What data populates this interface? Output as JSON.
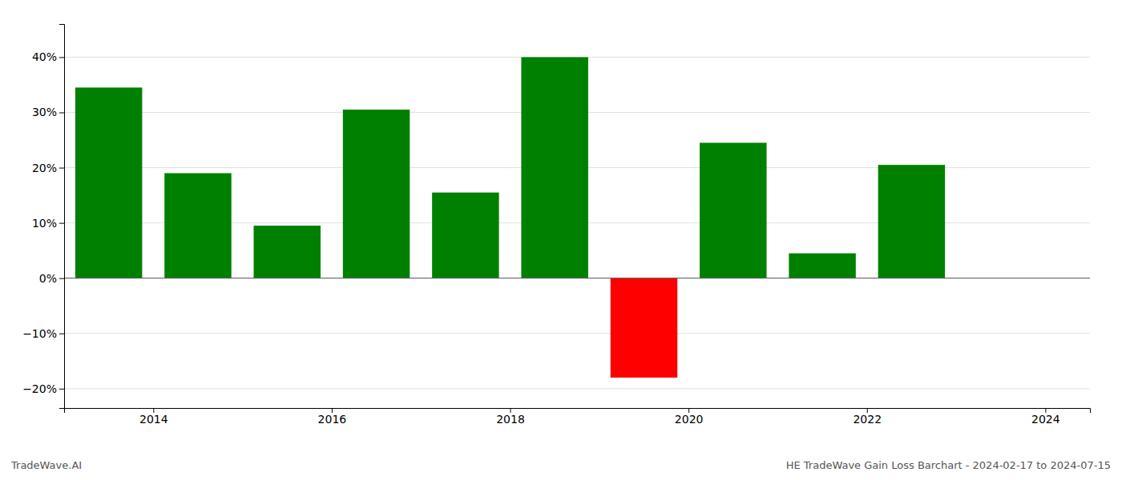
{
  "chart_data": {
    "type": "bar",
    "x": [
      2013.5,
      2014.5,
      2015.5,
      2016.5,
      2017.5,
      2018.5,
      2019.5,
      2020.5,
      2021.5,
      2022.5
    ],
    "values": [
      0.345,
      0.19,
      0.095,
      0.305,
      0.155,
      0.4,
      -0.18,
      0.245,
      0.045,
      0.205
    ],
    "colors": [
      "#008000",
      "#008000",
      "#008000",
      "#008000",
      "#008000",
      "#008000",
      "#ff0000",
      "#008000",
      "#008000",
      "#008000"
    ],
    "xlim": [
      2013.0,
      2024.5
    ],
    "xticks": [
      2014,
      2016,
      2018,
      2020,
      2022,
      2024
    ],
    "ylim": [
      -0.235,
      0.46
    ],
    "yticks": [
      {
        "value": -0.2,
        "label": "−20%"
      },
      {
        "value": -0.1,
        "label": "−10%"
      },
      {
        "value": 0.0,
        "label": "0%"
      },
      {
        "value": 0.1,
        "label": "10%"
      },
      {
        "value": 0.2,
        "label": "20%"
      },
      {
        "value": 0.3,
        "label": "30%"
      },
      {
        "value": 0.4,
        "label": "40%"
      }
    ],
    "grid": true,
    "annotations": [
      "TradeWave.AI",
      "HE TradeWave Gain Loss Barchart - 2024-02-17 to 2024-07-15"
    ]
  }
}
